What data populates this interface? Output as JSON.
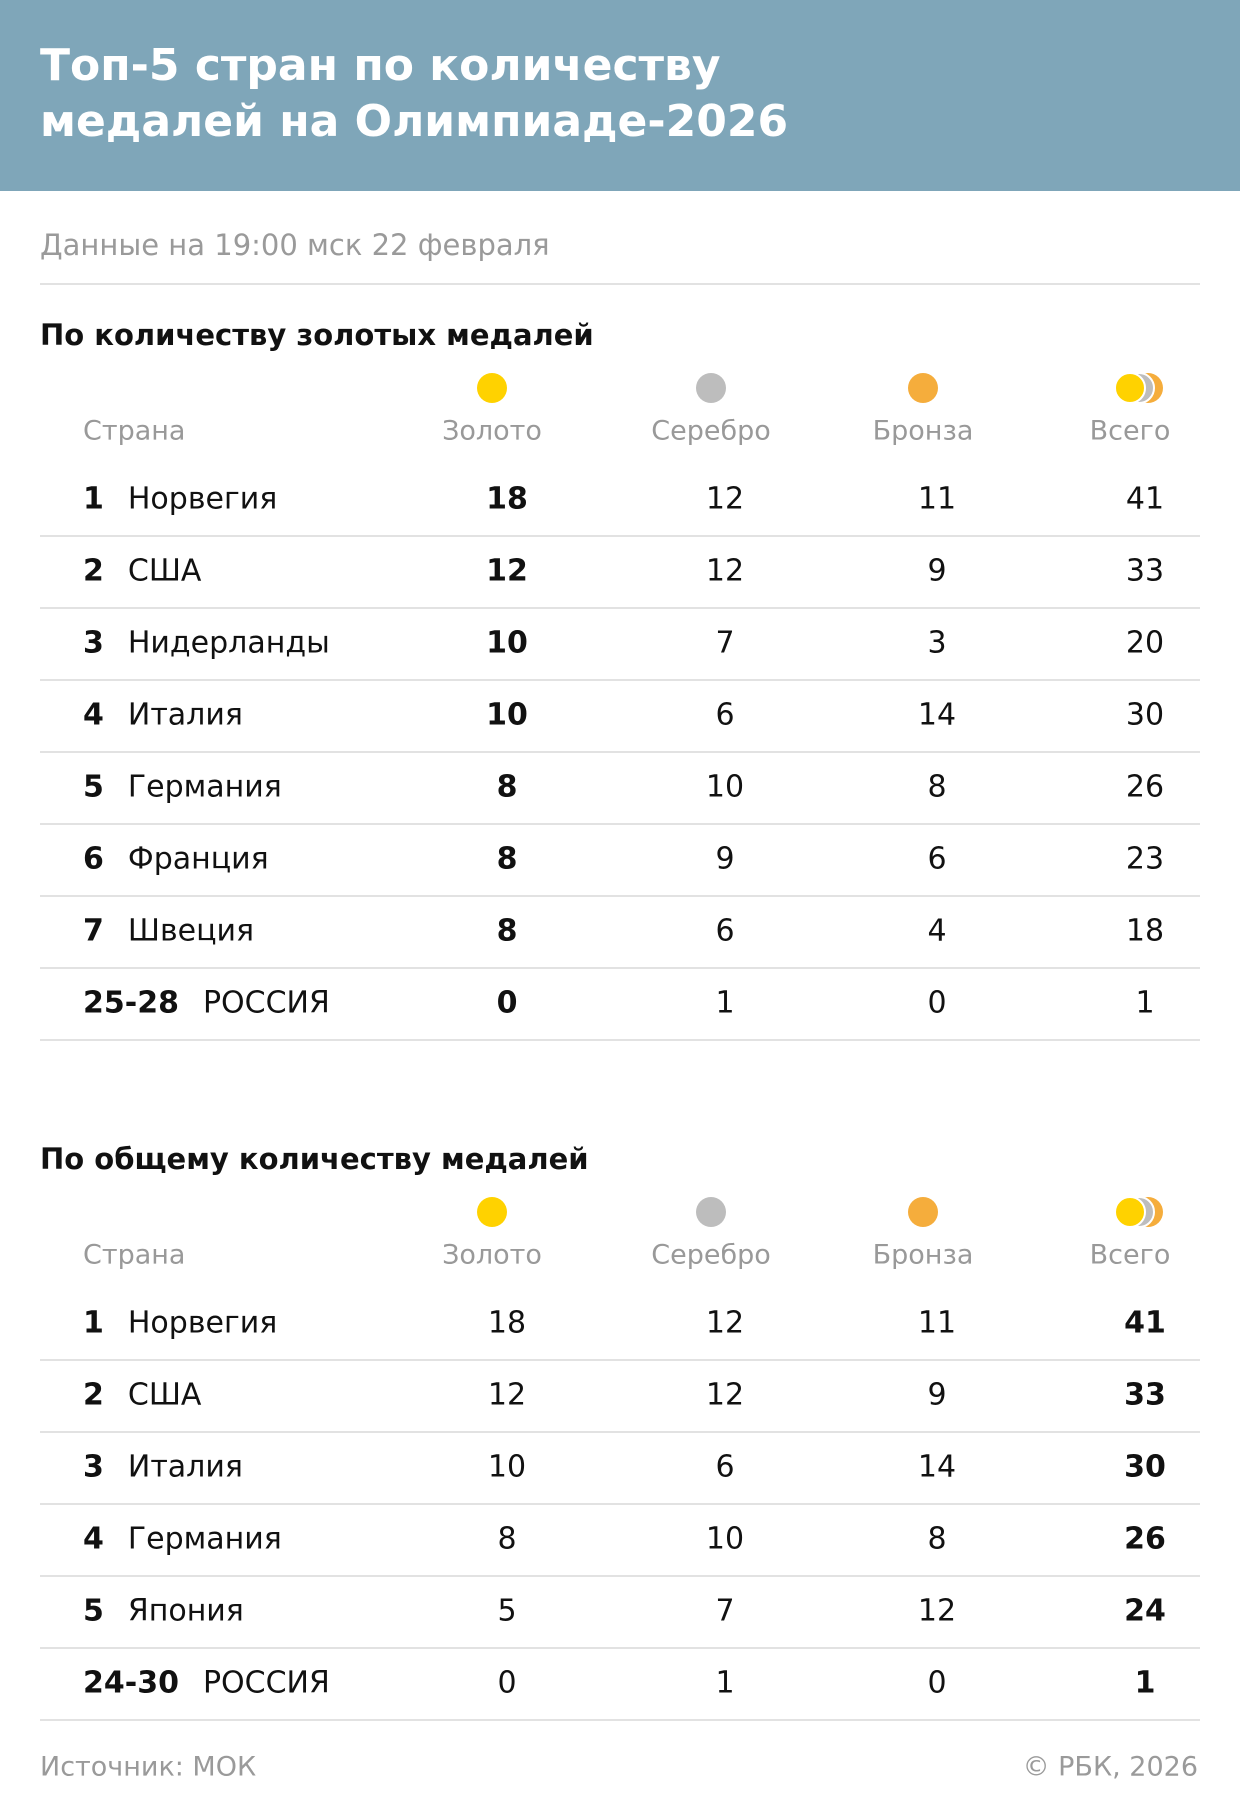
{
  "header": {
    "title": "Топ-5 стран по количеству медалей на Олимпиаде-2026",
    "subtitle": "Данные на 19:00 мск 22 февраля"
  },
  "sections": [
    {
      "title": "По количеству золотых медалей",
      "columns": [
        "Страна",
        "Золото",
        "Серебро",
        "Бронза",
        "Всего"
      ],
      "rows": [
        [
          "1",
          "Норвегия",
          18,
          12,
          11,
          41
        ],
        [
          "2",
          "США",
          12,
          12,
          9,
          33
        ],
        [
          "3",
          "Нидерланды",
          10,
          7,
          3,
          20
        ],
        [
          "4",
          "Италия",
          10,
          6,
          14,
          30
        ],
        [
          "5",
          "Германия",
          8,
          10,
          8,
          26
        ],
        [
          "6",
          "Франция",
          8,
          9,
          6,
          23
        ],
        [
          "7",
          "Швеция",
          8,
          6,
          4,
          18
        ],
        [
          "25-28",
          "РОССИЯ",
          0,
          1,
          0,
          1
        ]
      ]
    },
    {
      "title": "По общему количеству медалей",
      "columns": [
        "Страна",
        "Золото",
        "Серебро",
        "Бронза",
        "Всего"
      ],
      "rows": [
        [
          "1",
          "Норвегия",
          18,
          12,
          11,
          41
        ],
        [
          "2",
          "США",
          12,
          12,
          9,
          33
        ],
        [
          "3",
          "Италия",
          10,
          6,
          14,
          30
        ],
        [
          "4",
          "Германия",
          8,
          10,
          8,
          26
        ],
        [
          "5",
          "Япония",
          5,
          7,
          12,
          24
        ],
        [
          "24-30",
          "РОССИЯ",
          0,
          1,
          0,
          1
        ]
      ]
    }
  ],
  "footer": {
    "source": "Источник: МОК",
    "copyright": "© РБК, 2026"
  }
}
